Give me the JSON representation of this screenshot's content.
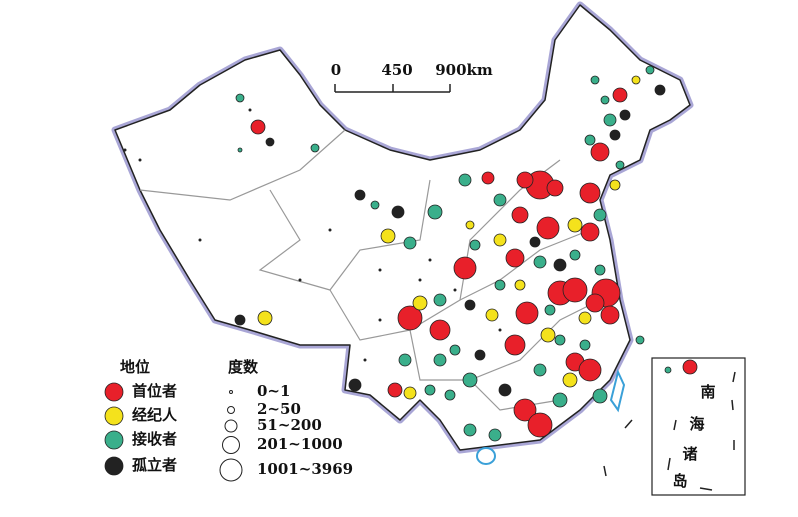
{
  "scale_bar": {
    "labels": [
      "0",
      "450",
      "900km"
    ]
  },
  "legend_role": {
    "title": "地位",
    "items": [
      "首位者",
      "经纪人",
      "接收者",
      "孤立者"
    ]
  },
  "legend_degree": {
    "title": "度数",
    "items": [
      "0~1",
      "2~50",
      "51~200",
      "201~1000",
      "1001~3969"
    ]
  },
  "inset": {
    "chars": [
      "南",
      "海",
      "诸",
      "岛"
    ]
  }
}
